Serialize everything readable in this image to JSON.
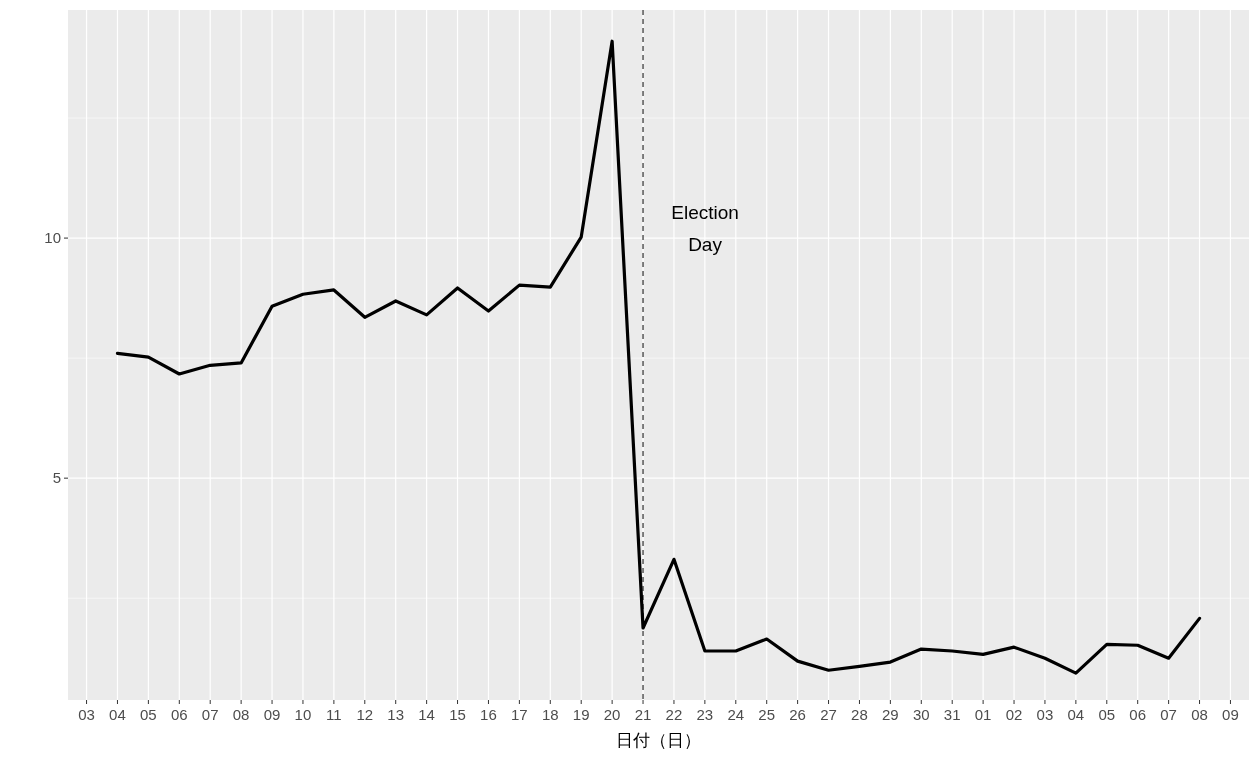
{
  "chart_data": {
    "type": "line",
    "xlabel": "日付（日）",
    "categories": [
      "03",
      "04",
      "05",
      "06",
      "07",
      "08",
      "09",
      "10",
      "11",
      "12",
      "13",
      "14",
      "15",
      "16",
      "17",
      "18",
      "19",
      "20",
      "21",
      "22",
      "23",
      "24",
      "25",
      "26",
      "27",
      "28",
      "29",
      "30",
      "31",
      "01",
      "02",
      "03",
      "04",
      "05",
      "06",
      "07",
      "08",
      "09"
    ],
    "values": [
      null,
      7.6,
      7.52,
      7.17,
      7.35,
      7.4,
      8.58,
      8.83,
      8.92,
      8.35,
      8.69,
      8.4,
      8.96,
      8.48,
      9.02,
      8.98,
      10.02,
      14.1,
      1.88,
      3.31,
      1.4,
      1.4,
      1.65,
      1.19,
      1.0,
      1.08,
      1.17,
      1.44,
      1.4,
      1.33,
      1.48,
      1.25,
      0.94,
      1.54,
      1.52,
      1.25,
      2.08,
      null
    ],
    "color": "#000000",
    "ylim": [
      0.38,
      14.75
    ],
    "yticks": [
      5,
      10
    ],
    "grid": true,
    "ref_lines": [
      {
        "axis": "x",
        "value": "21",
        "label": "Election\nDay",
        "color": "#555555",
        "line_style": "dashed"
      }
    ]
  }
}
